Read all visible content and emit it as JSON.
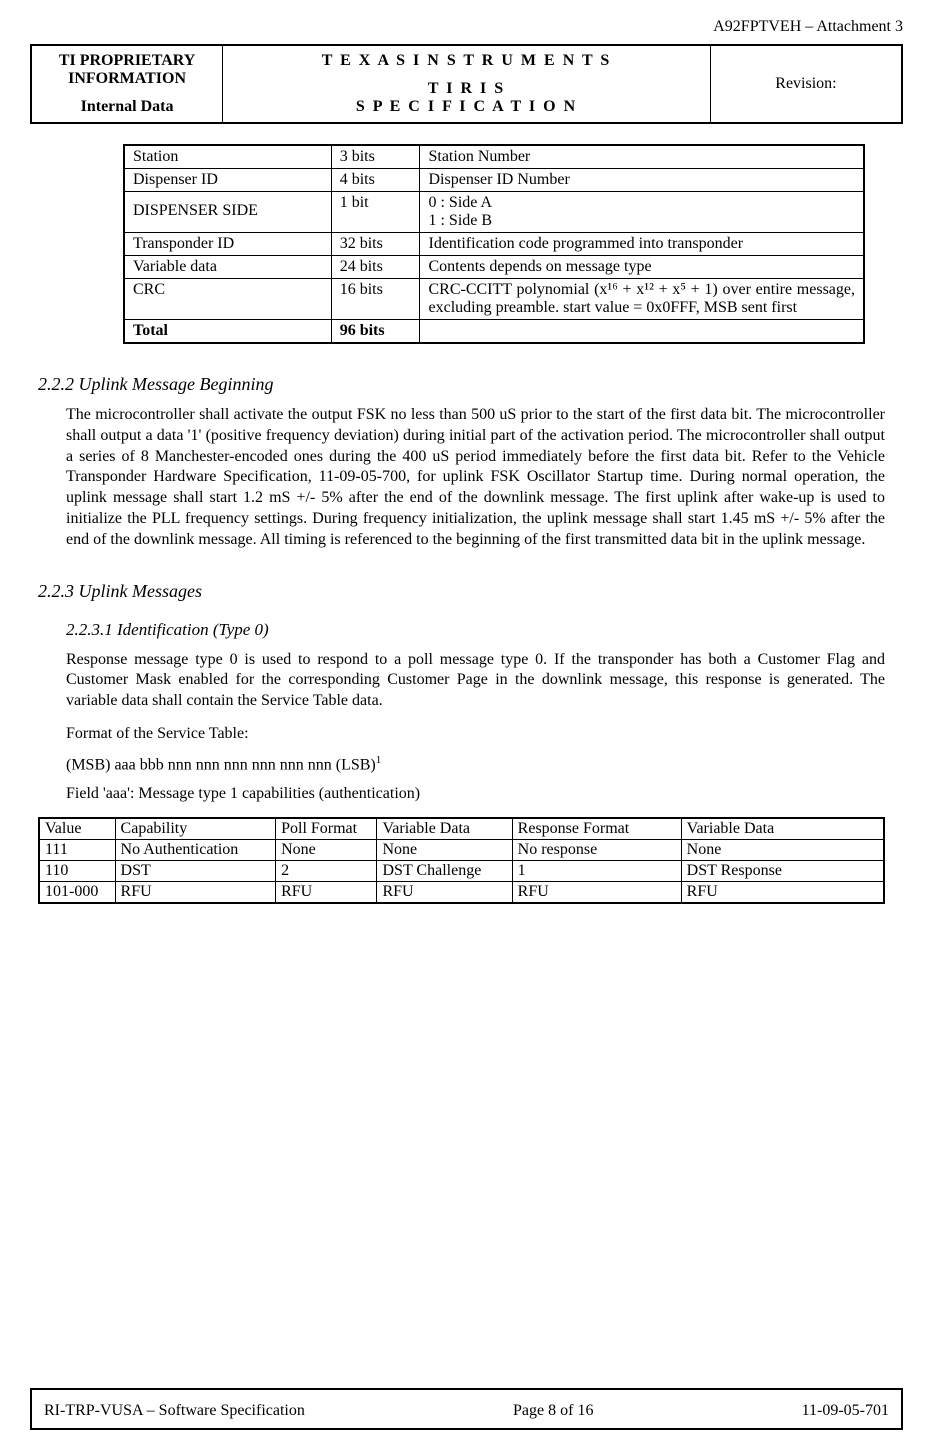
{
  "doc_id": "A92FPTVEH – Attachment 3",
  "header": {
    "left_line1": "TI PROPRIETARY",
    "left_line2": "INFORMATION",
    "left_line3": "Internal Data",
    "center_line1": "T E X A S  I N S T R U M E N T S",
    "center_line2": "T I R I S",
    "center_line3": "S P E C I F I C A T I O N",
    "right_line1": "Revision:"
  },
  "table1": {
    "rows": [
      {
        "a": "Station",
        "b": "3 bits",
        "c": "Station Number"
      },
      {
        "a": "Dispenser ID",
        "b": "4 bits",
        "c": "Dispenser ID Number"
      },
      {
        "a": "DISPENSER SIDE",
        "b": "1 bit",
        "c": "0 : Side A\n1 : Side B",
        "sc": true,
        "pad": true
      },
      {
        "a": "Transponder ID",
        "b": "32 bits",
        "c": "Identification code programmed into transponder"
      },
      {
        "a": "Variable data",
        "b": "24 bits",
        "c": "Contents depends on message type"
      },
      {
        "a": "CRC",
        "b": "16 bits",
        "c": "CRC-CCITT polynomial (x¹⁶ + x¹² + x⁵ + 1) over entire message, excluding preamble.  start value = 0x0FFF, MSB sent first",
        "justify": true
      }
    ],
    "total_a": "Total",
    "total_b": "96 bits",
    "total_c": ""
  },
  "s222": {
    "title": "2.2.2 Uplink Message Beginning",
    "text": "The microcontroller shall activate the output FSK no less than 500 uS prior to the start of the first data bit.  The microcontroller shall output a data '1' (positive frequency deviation) during initial part of the activation period. The microcontroller shall output a series of 8 Manchester-encoded ones during the 400 uS period immediately before the first data bit.  Refer to the Vehicle Transponder Hardware Specification, 11-09-05-700, for uplink FSK Oscillator Startup time.  During normal operation, the uplink message shall start 1.2 mS +/- 5% after the end of the downlink message.  The first uplink after wake-up is used to initialize the PLL frequency settings. During frequency initialization, the uplink message shall start 1.45 mS +/- 5% after the end of the downlink message. All timing is referenced to the beginning of the first transmitted data bit in the uplink message."
  },
  "s223": {
    "title": "2.2.3 Uplink Messages"
  },
  "s2231": {
    "title": "2.2.3.1 Identification (Type 0)",
    "p1": "Response message type 0 is used to respond to a poll message type 0.  If the transponder has both a Customer Flag and Customer Mask enabled for the corresponding Customer Page in the downlink message, this response is generated. The variable data shall contain the Service Table data.",
    "p2": "Format of the Service Table:",
    "p3_pre": "(MSB) aaa bbb nnn nnn nnn nnn nnn nnn (LSB)",
    "p3_sup": "1",
    "p4": "Field 'aaa': Message type 1 capabilities (authentication)"
  },
  "table2": {
    "headers": [
      "Value",
      "Capability",
      "Poll Format",
      "Variable Data",
      "Response Format",
      "Variable Data"
    ],
    "rows": [
      [
        "111",
        "No Authentication",
        "None",
        "None",
        "No response",
        "None"
      ],
      [
        "110",
        "DST",
        "2",
        "DST Challenge",
        "1",
        "DST Response"
      ],
      [
        "101-000",
        "RFU",
        "RFU",
        "RFU",
        "RFU",
        "RFU"
      ]
    ]
  },
  "footer": {
    "left": "RI-TRP-VUSA – Software Specification",
    "center": "Page 8 of 16",
    "right": "11-09-05-701"
  }
}
